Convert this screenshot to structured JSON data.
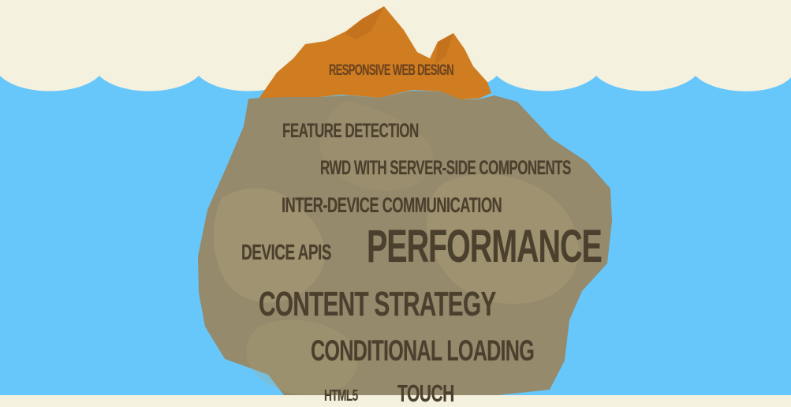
{
  "diagram": {
    "type": "iceberg",
    "colors": {
      "sky": "#f5f1df",
      "water": "#67c7fb",
      "tip": "#d07c21",
      "tip_shadow": "#b9661b",
      "iceberg": "#958a6c",
      "iceberg_light": "#b4a77b",
      "text": "#4b3f2d",
      "tip_text": "#6d4420"
    },
    "above_water": {
      "label": "RESPONSIVE WEB DESIGN"
    },
    "below_water": [
      {
        "label": "FEATURE DETECTION"
      },
      {
        "label": "RWD WITH SERVER-SIDE COMPONENTS"
      },
      {
        "label": "INTER-DEVICE COMMUNICATION"
      },
      {
        "label": "DEVICE APIS"
      },
      {
        "label": "PERFORMANCE"
      },
      {
        "label": "CONTENT STRATEGY"
      },
      {
        "label": "CONDITIONAL LOADING"
      },
      {
        "label": "HTML5"
      },
      {
        "label": "TOUCH"
      }
    ]
  }
}
